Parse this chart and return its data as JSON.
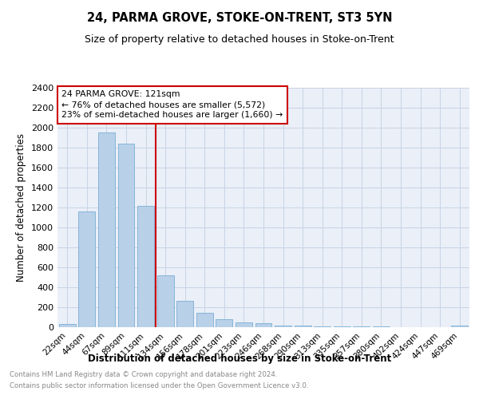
{
  "title": "24, PARMA GROVE, STOKE-ON-TRENT, ST3 5YN",
  "subtitle": "Size of property relative to detached houses in Stoke-on-Trent",
  "xlabel": "Distribution of detached houses by size in Stoke-on-Trent",
  "ylabel": "Number of detached properties",
  "categories": [
    "22sqm",
    "44sqm",
    "67sqm",
    "89sqm",
    "111sqm",
    "134sqm",
    "156sqm",
    "178sqm",
    "201sqm",
    "223sqm",
    "246sqm",
    "268sqm",
    "290sqm",
    "313sqm",
    "335sqm",
    "357sqm",
    "380sqm",
    "402sqm",
    "424sqm",
    "447sqm",
    "469sqm"
  ],
  "values": [
    30,
    1160,
    1950,
    1840,
    1220,
    520,
    265,
    148,
    80,
    50,
    40,
    20,
    15,
    10,
    8,
    5,
    5,
    3,
    2,
    2,
    15
  ],
  "bar_color": "#b8d0e8",
  "bar_edge_color": "#7aafd4",
  "vline_x": 4.5,
  "vline_color": "#cc0000",
  "annotation_title": "24 PARMA GROVE: 121sqm",
  "annotation_line1": "← 76% of detached houses are smaller (5,572)",
  "annotation_line2": "23% of semi-detached houses are larger (1,660) →",
  "annotation_box_color": "#cc0000",
  "ylim": [
    0,
    2400
  ],
  "yticks": [
    0,
    200,
    400,
    600,
    800,
    1000,
    1200,
    1400,
    1600,
    1800,
    2000,
    2200,
    2400
  ],
  "grid_color": "#c8d4e4",
  "bg_color": "#eaeff8",
  "footnote1": "Contains HM Land Registry data © Crown copyright and database right 2024.",
  "footnote2": "Contains public sector information licensed under the Open Government Licence v3.0."
}
